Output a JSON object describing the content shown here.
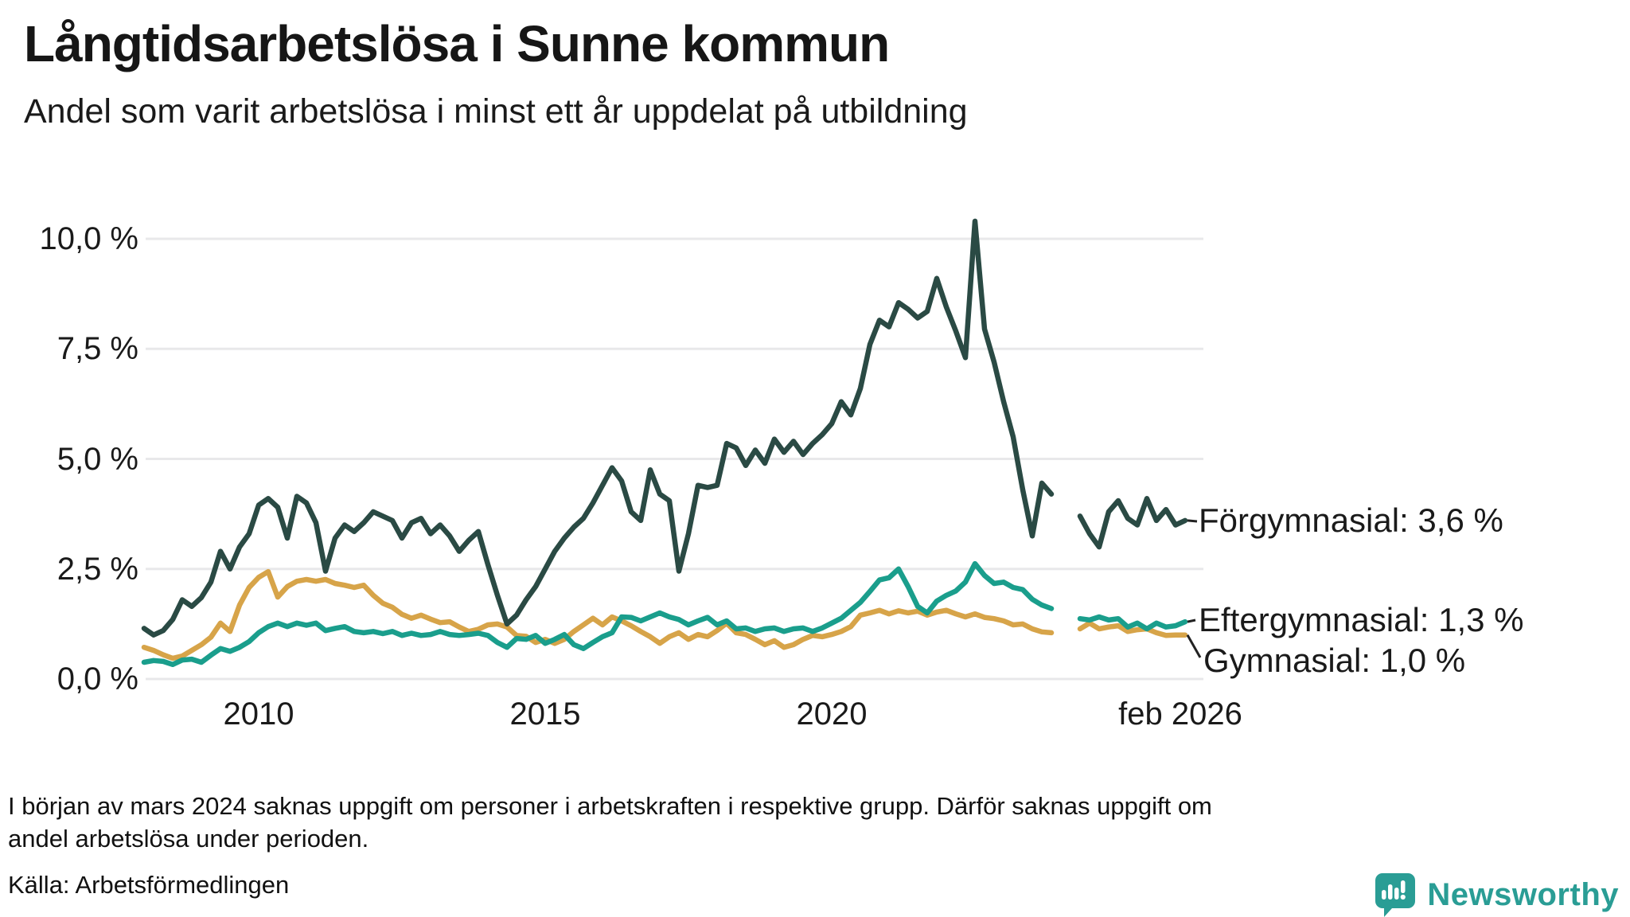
{
  "title": "Långtidsarbetslösa i Sunne kommun",
  "subtitle": "Andel som varit arbetslösa i minst ett år uppdelat på utbildning",
  "footnote_lines": [
    "I början av mars 2024 saknas uppgift om personer i arbetskraften i respektive grupp. Därför saknas uppgift om",
    "andel arbetslösa under perioden."
  ],
  "source": "Källa: Arbetsförmedlingen",
  "branding": {
    "name": "Newsworthy",
    "color": "#2a9d95"
  },
  "colors": {
    "grid": "#e8e8ea",
    "text": "#1a1a1a",
    "leader": "#222222"
  },
  "chart_data": {
    "type": "line",
    "title": "Långtidsarbetslösa i Sunne kommun",
    "subtitle": "Andel som varit arbetslösa i minst ett år uppdelat på utbildning",
    "unit": "%",
    "x_start": 2008.0,
    "x_step": 0.1666667,
    "x_axis": {
      "ticks": [
        {
          "label": "2010",
          "year": 2010
        },
        {
          "label": "2015",
          "year": 2015
        },
        {
          "label": "2020",
          "year": 2020
        },
        {
          "label": "feb 2026",
          "year": 2026.083
        }
      ]
    },
    "y_axis": {
      "range": [
        0,
        10.5
      ],
      "ticks": [
        {
          "label": "0,0 %",
          "value": 0
        },
        {
          "label": "2,5 %",
          "value": 2.5
        },
        {
          "label": "5,0 %",
          "value": 5
        },
        {
          "label": "7,5 %",
          "value": 7.5
        },
        {
          "label": "10,0 %",
          "value": 10
        }
      ]
    },
    "gap_period": "jan 2024 – mar 2024",
    "series": [
      {
        "name": "Förgymnasial",
        "end_label": "Förgymnasial: 3,6 %",
        "end_value": "3,6 %",
        "color": "#2a4a44",
        "values": [
          1.15,
          1.0,
          1.1,
          1.35,
          1.8,
          1.65,
          1.85,
          2.2,
          2.9,
          2.5,
          3.0,
          3.3,
          3.95,
          4.1,
          3.9,
          3.2,
          4.15,
          4.0,
          3.55,
          2.45,
          3.2,
          3.5,
          3.35,
          3.55,
          3.8,
          3.7,
          3.6,
          3.2,
          3.55,
          3.65,
          3.3,
          3.5,
          3.25,
          2.9,
          3.15,
          3.35,
          2.6,
          1.9,
          1.25,
          1.45,
          1.8,
          2.1,
          2.5,
          2.9,
          3.2,
          3.45,
          3.65,
          4.0,
          4.4,
          4.8,
          4.5,
          3.8,
          3.6,
          4.75,
          4.2,
          4.05,
          2.45,
          3.3,
          4.4,
          4.35,
          4.4,
          5.35,
          5.25,
          4.85,
          5.2,
          4.9,
          5.45,
          5.15,
          5.4,
          5.1,
          5.35,
          5.55,
          5.8,
          6.3,
          6.0,
          6.6,
          7.6,
          8.15,
          8.0,
          8.55,
          8.4,
          8.2,
          8.35,
          9.1,
          8.45,
          7.9,
          7.3,
          10.4,
          7.95,
          7.2,
          6.3,
          5.5,
          4.3,
          3.25,
          4.45,
          4.2,
          null,
          null,
          3.7,
          3.3,
          3.0,
          3.8,
          4.05,
          3.65,
          3.5,
          4.1,
          3.6,
          3.85,
          3.5,
          3.6
        ]
      },
      {
        "name": "Eftergymnasial",
        "end_label": "Eftergymnasial: 1,3 %",
        "end_value": "1,3 %",
        "color": "#1a9e8c",
        "values": [
          0.38,
          0.42,
          0.4,
          0.33,
          0.43,
          0.45,
          0.38,
          0.54,
          0.69,
          0.63,
          0.72,
          0.85,
          1.05,
          1.19,
          1.27,
          1.19,
          1.27,
          1.22,
          1.27,
          1.1,
          1.15,
          1.19,
          1.08,
          1.05,
          1.08,
          1.03,
          1.08,
          0.99,
          1.04,
          0.99,
          1.01,
          1.08,
          1.01,
          0.99,
          1.01,
          1.04,
          0.99,
          0.83,
          0.72,
          0.92,
          0.9,
          0.99,
          0.81,
          0.9,
          1.01,
          0.78,
          0.69,
          0.83,
          0.96,
          1.05,
          1.41,
          1.4,
          1.32,
          1.41,
          1.5,
          1.41,
          1.35,
          1.23,
          1.32,
          1.4,
          1.23,
          1.32,
          1.14,
          1.16,
          1.08,
          1.14,
          1.16,
          1.08,
          1.14,
          1.16,
          1.08,
          1.16,
          1.27,
          1.38,
          1.56,
          1.74,
          1.99,
          2.25,
          2.3,
          2.5,
          2.1,
          1.65,
          1.5,
          1.77,
          1.9,
          2.0,
          2.2,
          2.62,
          2.35,
          2.17,
          2.2,
          2.08,
          2.03,
          1.81,
          1.68,
          1.6,
          null,
          null,
          1.37,
          1.34,
          1.41,
          1.34,
          1.37,
          1.18,
          1.27,
          1.14,
          1.27,
          1.18,
          1.21,
          1.3
        ]
      },
      {
        "name": "Gymnasial",
        "end_label": "Gymnasial: 1,0 %",
        "end_value": "1,0 %",
        "color": "#d7a449",
        "values": [
          0.72,
          0.65,
          0.55,
          0.47,
          0.52,
          0.65,
          0.78,
          0.95,
          1.27,
          1.08,
          1.68,
          2.08,
          2.31,
          2.44,
          1.86,
          2.1,
          2.22,
          2.26,
          2.22,
          2.26,
          2.17,
          2.13,
          2.08,
          2.13,
          1.9,
          1.72,
          1.63,
          1.47,
          1.38,
          1.45,
          1.36,
          1.28,
          1.3,
          1.18,
          1.08,
          1.13,
          1.23,
          1.25,
          1.18,
          0.99,
          0.97,
          0.83,
          0.9,
          0.81,
          0.9,
          1.08,
          1.23,
          1.38,
          1.23,
          1.41,
          1.32,
          1.21,
          1.08,
          0.96,
          0.81,
          0.96,
          1.05,
          0.9,
          1.01,
          0.96,
          1.1,
          1.27,
          1.05,
          1.01,
          0.9,
          0.78,
          0.87,
          0.72,
          0.78,
          0.9,
          0.99,
          0.96,
          1.01,
          1.08,
          1.19,
          1.45,
          1.5,
          1.56,
          1.48,
          1.55,
          1.5,
          1.54,
          1.45,
          1.52,
          1.56,
          1.48,
          1.41,
          1.48,
          1.4,
          1.37,
          1.32,
          1.23,
          1.25,
          1.14,
          1.07,
          1.05,
          null,
          null,
          1.14,
          1.27,
          1.14,
          1.18,
          1.21,
          1.08,
          1.12,
          1.14,
          1.05,
          0.99,
          1.0,
          1.0
        ]
      }
    ]
  }
}
